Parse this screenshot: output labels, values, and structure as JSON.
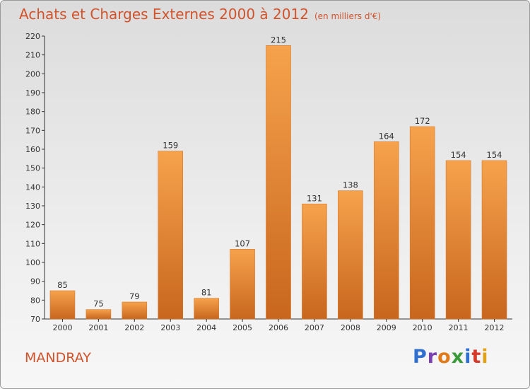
{
  "title": "Achats et Charges Externes 2000 à 2012",
  "subtitle": "(en milliers d'€)",
  "commune": "MANDRAY",
  "logo": {
    "text": "Proxiti",
    "letters": [
      "P",
      "r",
      "o",
      "x",
      "i",
      "t",
      "i"
    ],
    "colors": [
      "#2f6fd0",
      "#7a3fb0",
      "#e07a1a",
      "#3a9a3a",
      "#2f6fd0",
      "#d83a2a",
      "#e0a21a"
    ]
  },
  "colors": {
    "bar": "#f0903a",
    "bar_dark": "#c8661e",
    "title": "#d0532c",
    "axis": "#333333",
    "grid": "#c8c8c8"
  },
  "chart_data": {
    "type": "bar",
    "title": "Achats et Charges Externes 2000 à 2012",
    "subtitle": "(en milliers d'€)",
    "categories": [
      "2000",
      "2001",
      "2002",
      "2003",
      "2004",
      "2005",
      "2006",
      "2007",
      "2008",
      "2009",
      "2010",
      "2011",
      "2012"
    ],
    "values": [
      85,
      75,
      79,
      159,
      81,
      107,
      215,
      131,
      138,
      164,
      172,
      154,
      154
    ],
    "ylim": [
      70,
      220
    ],
    "ytick_step": 10,
    "grid": false,
    "data_labels": true
  }
}
